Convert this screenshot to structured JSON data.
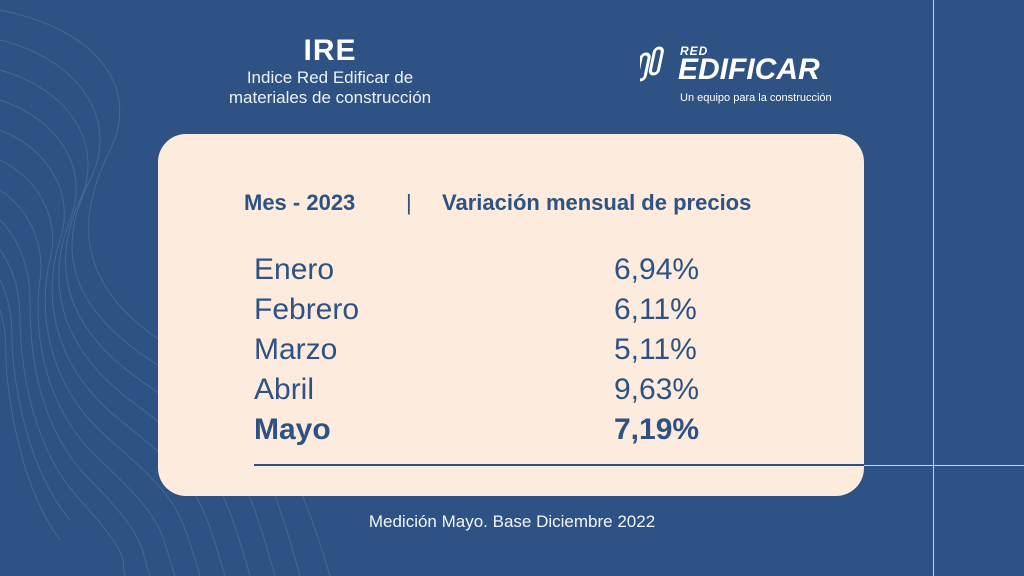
{
  "header": {
    "title": "IRE",
    "subtitle_line1": "Indice Red Edificar de",
    "subtitle_line2": "materiales de construcción"
  },
  "logo": {
    "small": "RED",
    "main": "EDIFICAR",
    "tagline": "Un equipo para la construcción"
  },
  "table": {
    "col_month": "Mes - 2023",
    "separator": "|",
    "col_variation": "Variación mensual de precios",
    "rows": [
      {
        "month": "Enero",
        "value": "6,94%"
      },
      {
        "month": "Febrero",
        "value": "6,11%"
      },
      {
        "month": "Marzo",
        "value": "5,11%"
      },
      {
        "month": "Abril",
        "value": "9,63%"
      },
      {
        "month": "Mayo",
        "value": "7,19%"
      }
    ]
  },
  "footer": "Medición Mayo. Base Diciembre 2022",
  "colors": {
    "background": "#2d5283",
    "card": "#fdebdd",
    "text_dark": "#2d5283"
  }
}
